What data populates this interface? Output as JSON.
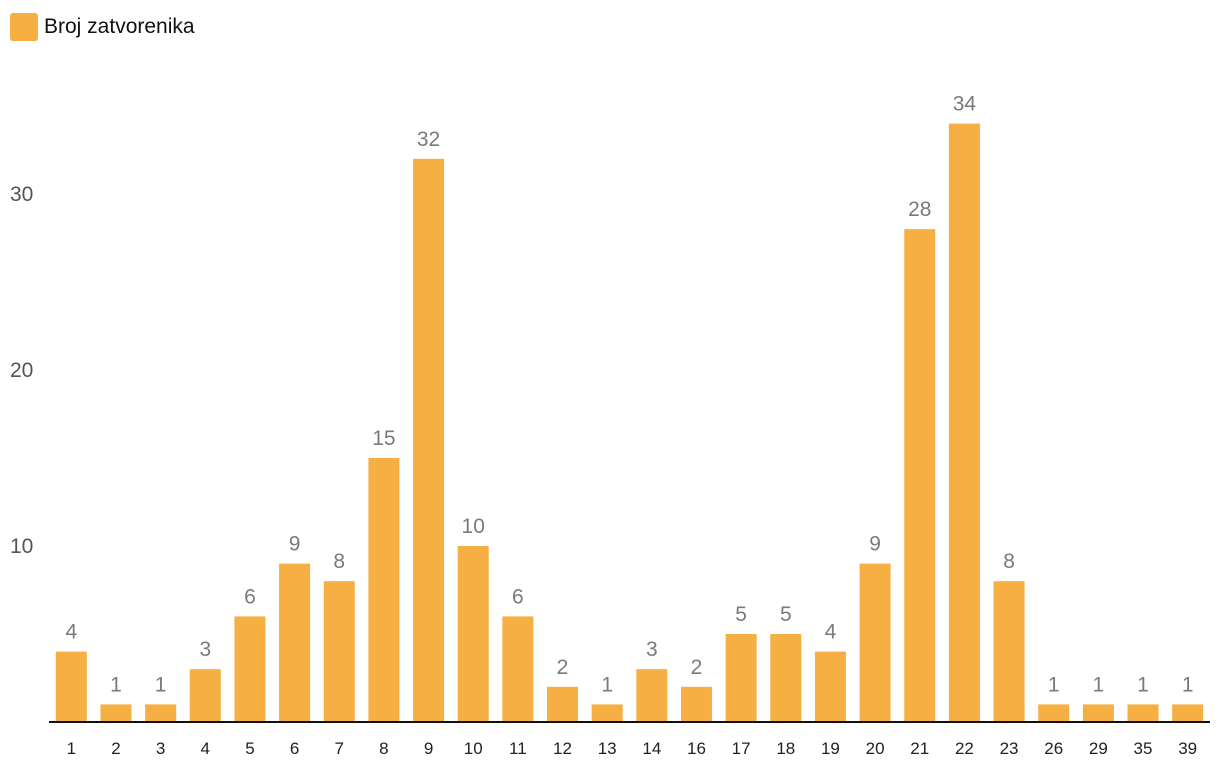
{
  "legend": {
    "label": "Broj zatvorenika",
    "color": "#F5AF43"
  },
  "chart_data": {
    "type": "bar",
    "categories": [
      "1",
      "2",
      "3",
      "4",
      "5",
      "6",
      "7",
      "8",
      "9",
      "10",
      "11",
      "12",
      "13",
      "14",
      "16",
      "17",
      "18",
      "19",
      "20",
      "21",
      "22",
      "23",
      "26",
      "29",
      "35",
      "39"
    ],
    "series": [
      {
        "name": "Broj zatvorenika",
        "values": [
          4,
          1,
          1,
          3,
          6,
          9,
          8,
          15,
          32,
          10,
          6,
          2,
          1,
          3,
          2,
          5,
          5,
          4,
          9,
          28,
          34,
          8,
          1,
          1,
          1,
          1
        ]
      }
    ],
    "yticks": [
      10,
      20,
      30
    ],
    "ylim": [
      0,
      35
    ],
    "grid": false,
    "legend_position": "top-left",
    "bar_color": "#F5AF43",
    "title": "",
    "xlabel": "",
    "ylabel": ""
  }
}
